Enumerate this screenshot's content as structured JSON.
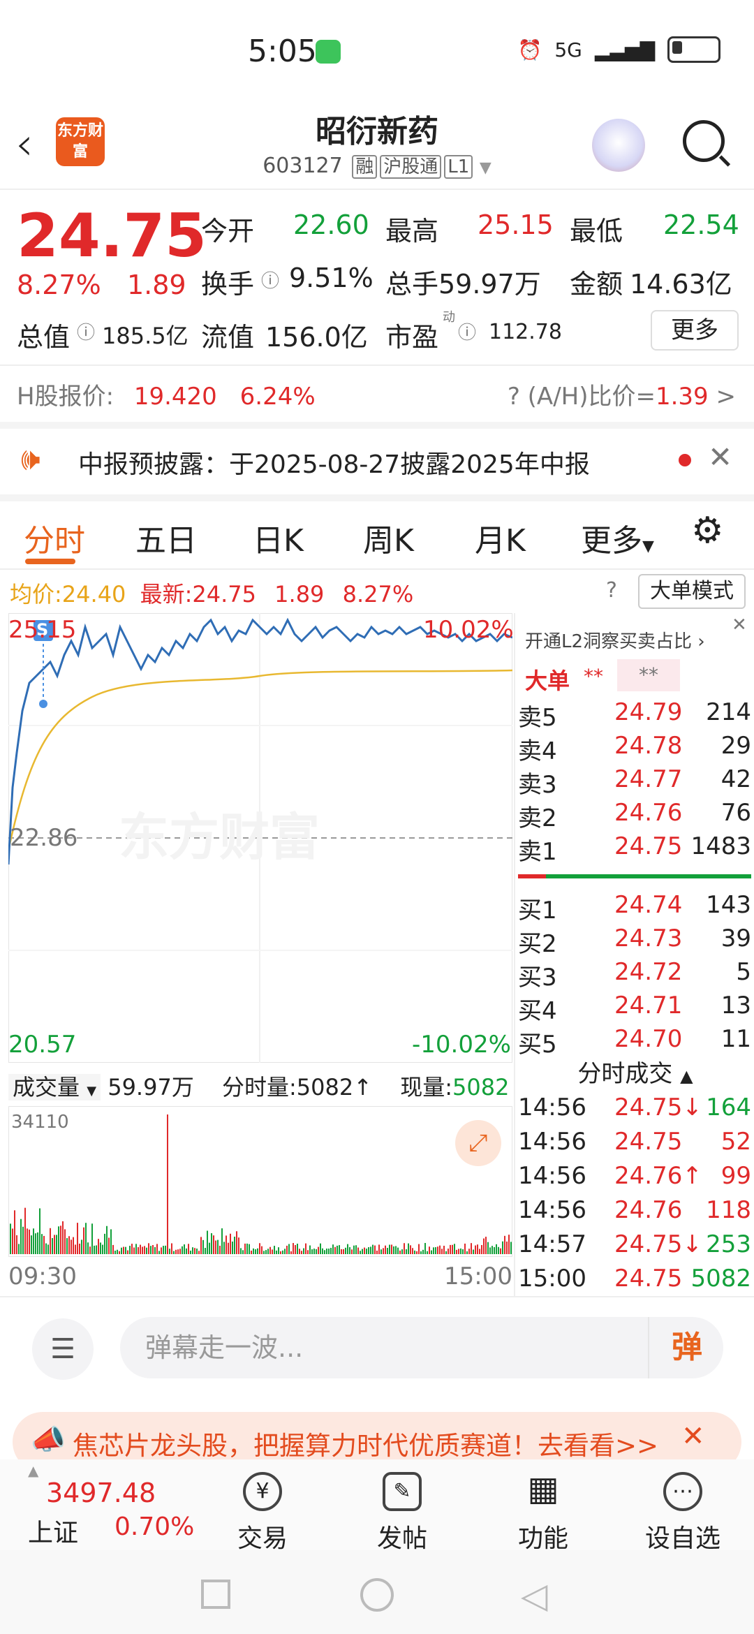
{
  "status_bar": {
    "time": "5:05",
    "network": "5G"
  },
  "header": {
    "logo_text": "东方财富",
    "title": "昭衍新药",
    "code": "603127",
    "tags": [
      "融",
      "沪股通",
      "L1"
    ]
  },
  "quote": {
    "price": "24.75",
    "change_pct": "8.27%",
    "change": "1.89",
    "labels": {
      "open": "今开",
      "high": "最高",
      "low": "最低",
      "turnover": "换手",
      "volume": "总手",
      "amount": "金额",
      "market_cap": "总值",
      "float_cap": "流值",
      "pe": "市盈",
      "pe_sup": "动"
    },
    "values": {
      "open": "22.60",
      "high": "25.15",
      "low": "22.54",
      "turnover": "9.51%",
      "volume": "59.97万",
      "amount": "14.63亿",
      "market_cap": "185.5亿",
      "float_cap": "156.0亿",
      "pe": "112.78"
    },
    "more_label": "更多"
  },
  "h_share": {
    "label": "H股报价:",
    "price": "19.420",
    "change_pct": "6.24%",
    "ah_label": "(A/H)比价=",
    "ah_value": "1.39",
    "arrow": ">"
  },
  "notice": {
    "text": "中报预披露：于2025-08-27披露2025年中报"
  },
  "tabs": [
    "分时",
    "五日",
    "日K",
    "周K",
    "月K",
    "更多"
  ],
  "avg_row": {
    "avg_label": "均价:",
    "avg_value": "24.40",
    "last_label": "最新:",
    "last_value": "24.75",
    "change": "1.89",
    "change_pct": "8.27%",
    "big_order_mode": "大单模式"
  },
  "chart_labels": {
    "top_left": "25.15",
    "top_right": "10.02%",
    "mid": "22.86",
    "bottom_left": "20.57",
    "bottom_right": "-10.02%",
    "watermark": "东方财富",
    "marker": "S"
  },
  "volume_bar": {
    "label": "成交量",
    "total": "59.97万",
    "minute_label": "分时量:",
    "minute_value": "5082↑",
    "now_label": "现量:",
    "now_value": "5082",
    "max": "34110",
    "start_time": "09:30",
    "end_time": "15:00"
  },
  "orderbook": {
    "promo": "开通L2洞察买卖占比",
    "big_order_label": "大单",
    "big_order_a": "**",
    "big_order_b": "**",
    "asks": [
      {
        "label": "卖5",
        "price": "24.79",
        "vol": "214"
      },
      {
        "label": "卖4",
        "price": "24.78",
        "vol": "29"
      },
      {
        "label": "卖3",
        "price": "24.77",
        "vol": "42"
      },
      {
        "label": "卖2",
        "price": "24.76",
        "vol": "76"
      },
      {
        "label": "卖1",
        "price": "24.75",
        "vol": "1483"
      }
    ],
    "bids": [
      {
        "label": "买1",
        "price": "24.74",
        "vol": "143"
      },
      {
        "label": "买2",
        "price": "24.73",
        "vol": "39"
      },
      {
        "label": "买3",
        "price": "24.72",
        "vol": "5"
      },
      {
        "label": "买4",
        "price": "24.71",
        "vol": "13"
      },
      {
        "label": "买5",
        "price": "24.70",
        "vol": "11"
      }
    ],
    "ticks_title": "分时成交",
    "ticks": [
      {
        "time": "14:56",
        "price": "24.75↓",
        "vol": "164",
        "dir": "down"
      },
      {
        "time": "14:56",
        "price": "24.75",
        "vol": "52",
        "dir": "up"
      },
      {
        "time": "14:56",
        "price": "24.76↑",
        "vol": "99",
        "dir": "up"
      },
      {
        "time": "14:56",
        "price": "24.76",
        "vol": "118",
        "dir": "up"
      },
      {
        "time": "14:57",
        "price": "24.75↓",
        "vol": "253",
        "dir": "down"
      },
      {
        "time": "15:00",
        "price": "24.75",
        "vol": "5082",
        "dir": "down"
      }
    ]
  },
  "comment": {
    "placeholder": "弹幕走一波...",
    "send_icon_text": "弹"
  },
  "ad": {
    "text": "焦芯片龙头股，把握算力时代优质赛道！去看看>>"
  },
  "bottom_nav": {
    "index_value": "3497.48",
    "index_name": "上证",
    "index_change": "0.70%",
    "items": [
      {
        "label": "交易",
        "icon": "¥"
      },
      {
        "label": "发帖",
        "icon": "✎"
      },
      {
        "label": "功能",
        "icon": "▦"
      },
      {
        "label": "设自选",
        "icon": "⋯"
      }
    ]
  },
  "colors": {
    "up": "#e0292a",
    "down": "#13a03a",
    "accent": "#e8641e",
    "avg_line": "#e8b830",
    "price_line": "#2f6db5"
  }
}
